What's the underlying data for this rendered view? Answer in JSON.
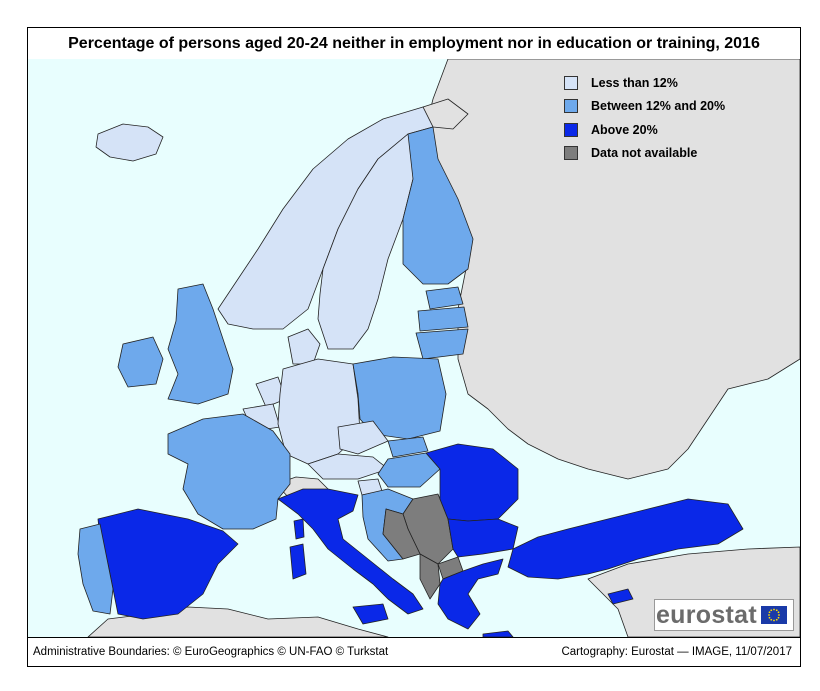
{
  "title": "Percentage of persons aged 20-24 neither in employment nor in education or training, 2016",
  "legend": [
    {
      "label": "Less than 12%",
      "color": "#d5e3f7"
    },
    {
      "label": "Between 12% and 20%",
      "color": "#6ea9ec"
    },
    {
      "label": "Above 20%",
      "color": "#0a28e8"
    },
    {
      "label": "Data not available",
      "color": "#7d7d7d"
    }
  ],
  "colors": {
    "sea": "#e8fefe",
    "non_eu_land": "#e1e1e1",
    "border": "#222222"
  },
  "logo": {
    "text": "eurostat"
  },
  "footer": {
    "left": "Administrative Boundaries: © EuroGeographics © UN-FAO © Turkstat",
    "right": "Cartography: Eurostat — IMAGE, 11/07/2017"
  }
}
